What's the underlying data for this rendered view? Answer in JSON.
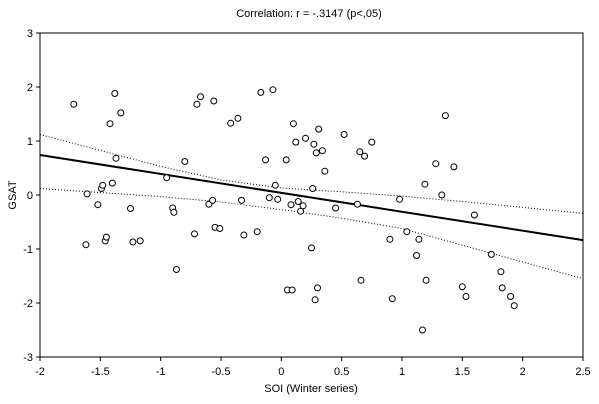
{
  "chart_data": {
    "type": "scatter",
    "title": "Correlation: r = -.3147 (p<,05)",
    "xlabel": "SOI (Winter series)",
    "ylabel": "GSAT",
    "xlim": [
      -2,
      2.5
    ],
    "ylim": [
      -3,
      3
    ],
    "x_ticks": [
      -2,
      -1.5,
      -1,
      -0.5,
      0,
      0.5,
      1,
      1.5,
      2,
      2.5
    ],
    "x_tick_labels": [
      "-2",
      "-1.5",
      "-1",
      "-0.5",
      "0",
      "0.5",
      "1",
      "1.5",
      "2",
      "2.5"
    ],
    "y_ticks": [
      -3,
      -2,
      -1,
      0,
      1,
      2,
      3
    ],
    "y_tick_labels": [
      "-3",
      "-2",
      "-1",
      "0",
      "1",
      "2",
      "3"
    ],
    "grid": false,
    "regression_line": {
      "intercept": 0.04,
      "slope": -0.35,
      "color": "#000000"
    },
    "confidence_band": {
      "upper": [
        [
          -2,
          1.12
        ],
        [
          -1,
          0.53
        ],
        [
          -0.5,
          0.28
        ],
        [
          0,
          0.13
        ],
        [
          0.5,
          0.06
        ],
        [
          1,
          -0.02
        ],
        [
          1.5,
          -0.12
        ],
        [
          2,
          -0.23
        ],
        [
          2.5,
          -0.34
        ]
      ],
      "lower": [
        [
          -2,
          0.12
        ],
        [
          -1,
          -0.03
        ],
        [
          -0.5,
          -0.13
        ],
        [
          0,
          -0.27
        ],
        [
          0.5,
          -0.43
        ],
        [
          1,
          -0.62
        ],
        [
          1.5,
          -0.93
        ],
        [
          2,
          -1.24
        ],
        [
          2.5,
          -1.55
        ]
      ],
      "style": "dotted"
    },
    "points": [
      [
        -1.72,
        1.68
      ],
      [
        -1.62,
        -0.92
      ],
      [
        -1.61,
        0.02
      ],
      [
        -1.52,
        -0.18
      ],
      [
        -1.49,
        0.12
      ],
      [
        -1.48,
        0.18
      ],
      [
        -1.46,
        -0.85
      ],
      [
        -1.45,
        -0.78
      ],
      [
        -1.42,
        1.32
      ],
      [
        -1.4,
        0.22
      ],
      [
        -1.38,
        1.88
      ],
      [
        -1.37,
        0.68
      ],
      [
        -1.33,
        1.52
      ],
      [
        -1.25,
        -0.25
      ],
      [
        -1.23,
        -0.87
      ],
      [
        -1.17,
        -0.85
      ],
      [
        -0.95,
        0.32
      ],
      [
        -0.9,
        -0.24
      ],
      [
        -0.89,
        -0.32
      ],
      [
        -0.87,
        -1.38
      ],
      [
        -0.8,
        0.62
      ],
      [
        -0.72,
        -0.72
      ],
      [
        -0.7,
        1.68
      ],
      [
        -0.67,
        1.82
      ],
      [
        -0.6,
        -0.17
      ],
      [
        -0.57,
        -0.1
      ],
      [
        -0.56,
        1.74
      ],
      [
        -0.55,
        -0.6
      ],
      [
        -0.51,
        -0.62
      ],
      [
        -0.42,
        1.33
      ],
      [
        -0.36,
        1.42
      ],
      [
        -0.33,
        -0.1
      ],
      [
        -0.31,
        -0.74
      ],
      [
        -0.2,
        -0.68
      ],
      [
        -0.17,
        1.9
      ],
      [
        -0.13,
        0.65
      ],
      [
        -0.1,
        -0.05
      ],
      [
        -0.07,
        1.95
      ],
      [
        -0.05,
        0.18
      ],
      [
        -0.03,
        -0.08
      ],
      [
        0.04,
        0.65
      ],
      [
        0.05,
        -1.76
      ],
      [
        0.08,
        -0.18
      ],
      [
        0.09,
        -1.76
      ],
      [
        0.1,
        1.32
      ],
      [
        0.12,
        0.98
      ],
      [
        0.14,
        -0.12
      ],
      [
        0.16,
        -0.3
      ],
      [
        0.18,
        -0.2
      ],
      [
        0.2,
        1.05
      ],
      [
        0.25,
        -0.98
      ],
      [
        0.26,
        0.12
      ],
      [
        0.27,
        0.94
      ],
      [
        0.28,
        -1.94
      ],
      [
        0.29,
        0.78
      ],
      [
        0.3,
        -1.72
      ],
      [
        0.31,
        1.22
      ],
      [
        0.34,
        0.82
      ],
      [
        0.36,
        0.44
      ],
      [
        0.45,
        -0.24
      ],
      [
        0.52,
        1.12
      ],
      [
        0.63,
        -0.17
      ],
      [
        0.65,
        0.8
      ],
      [
        0.66,
        -1.58
      ],
      [
        0.69,
        0.72
      ],
      [
        0.75,
        0.98
      ],
      [
        0.9,
        -0.82
      ],
      [
        0.92,
        -1.92
      ],
      [
        0.98,
        -0.08
      ],
      [
        1.04,
        -0.68
      ],
      [
        1.12,
        -1.12
      ],
      [
        1.14,
        -0.82
      ],
      [
        1.17,
        -2.5
      ],
      [
        1.19,
        0.2
      ],
      [
        1.2,
        -1.58
      ],
      [
        1.28,
        0.58
      ],
      [
        1.33,
        0.0
      ],
      [
        1.36,
        1.47
      ],
      [
        1.43,
        0.52
      ],
      [
        1.5,
        -1.7
      ],
      [
        1.53,
        -1.88
      ],
      [
        1.6,
        -0.37
      ],
      [
        1.74,
        -1.1
      ],
      [
        1.82,
        -1.42
      ],
      [
        1.83,
        -1.72
      ],
      [
        1.9,
        -1.88
      ],
      [
        1.93,
        -2.05
      ]
    ]
  }
}
